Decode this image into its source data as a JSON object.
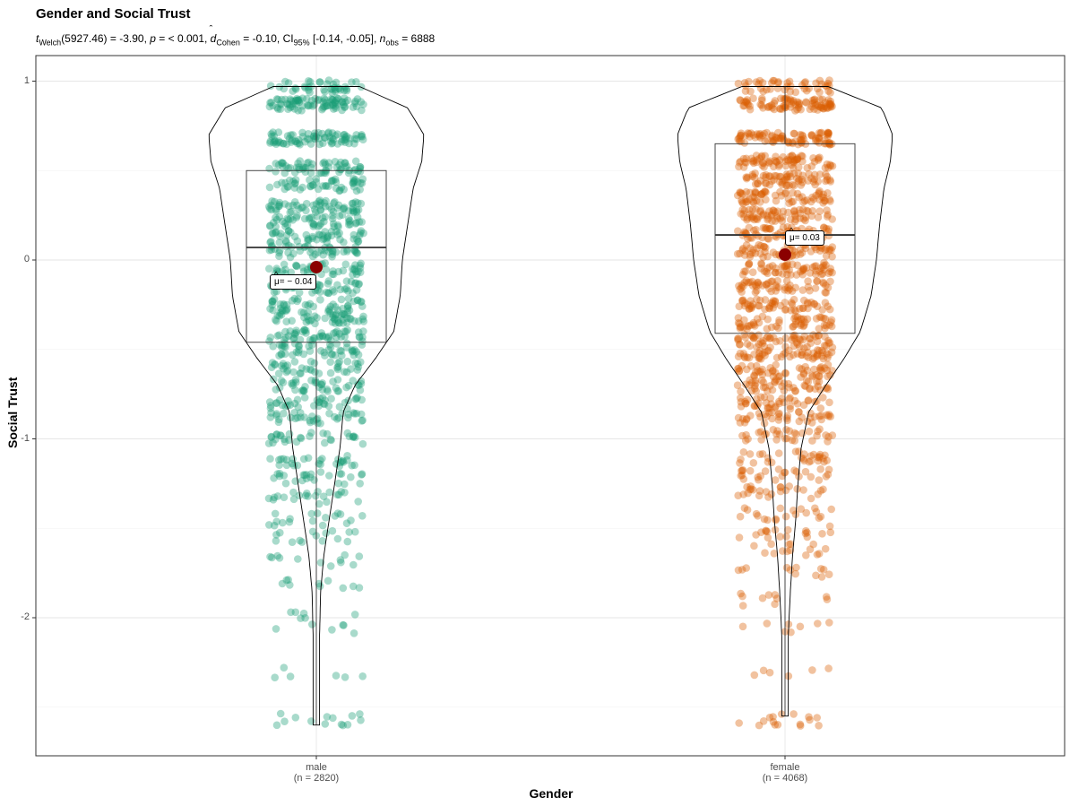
{
  "chart_data": {
    "type": "violin-box-jitter",
    "title": "Gender and Social Trust",
    "subtitle": {
      "t_symbol": "t",
      "t_sub": "Welch",
      "t_text": "(5927.46) = -3.90, ",
      "p_symbol": "p",
      "p_text": " = < 0.001, ",
      "d_symbol": "d",
      "d_sub": "Cohen",
      "d_text": " = -0.10, CI",
      "ci_sub": "95%",
      "ci_text": " [-0.14, -0.05], ",
      "n_symbol": "n",
      "n_sub": "obs",
      "n_text": " = 6888"
    },
    "xlabel": "Gender",
    "ylabel": "Social Trust",
    "ylim": [
      -2.75,
      1.15
    ],
    "yticks": [
      {
        "value": 1,
        "label": "1"
      },
      {
        "value": 0,
        "label": "0"
      },
      {
        "value": -1,
        "label": "-1"
      },
      {
        "value": -2,
        "label": "-2"
      }
    ],
    "grid": true,
    "groups": [
      {
        "name": "male",
        "n_label": "(n = 2820)",
        "color": "#1B9E77",
        "box": {
          "q1": -0.46,
          "median": 0.07,
          "q3": 0.5,
          "whisker_low": -2.6,
          "whisker_high": 0.97
        },
        "mean": -0.04,
        "mean_label": "= − 0.04",
        "min": -2.6,
        "max": 0.97
      },
      {
        "name": "female",
        "n_label": "(n = 4068)",
        "color": "#D95F02",
        "box": {
          "q1": -0.41,
          "median": 0.14,
          "q3": 0.65,
          "whisker_low": -2.55,
          "whisker_high": 0.97
        },
        "mean": 0.03,
        "mean_label": "= 0.03",
        "min": -2.55,
        "max": 0.97
      }
    ],
    "mean_color": "#8B0000"
  }
}
